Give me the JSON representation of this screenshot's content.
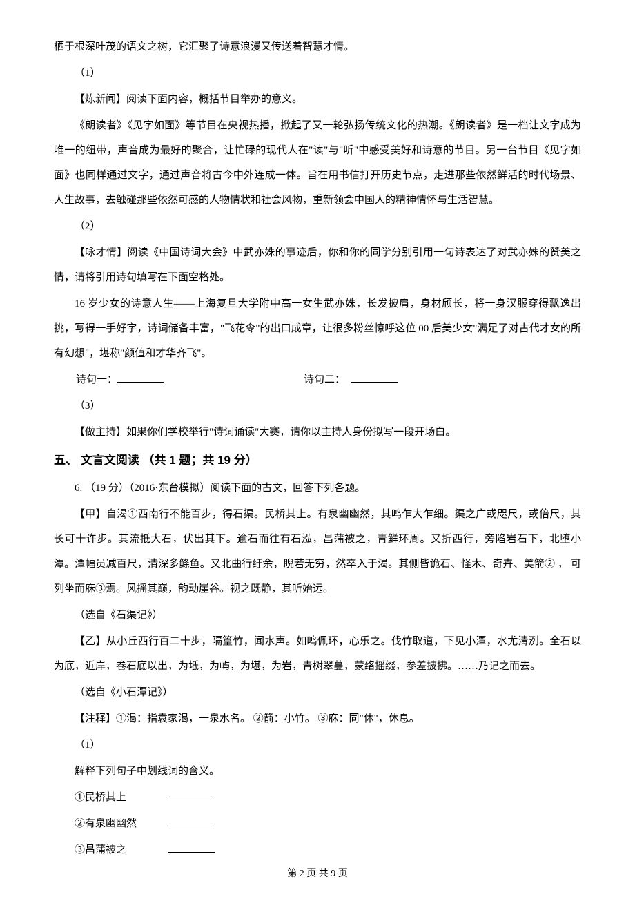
{
  "p1": "栖于根深叶茂的语文之树，它汇聚了诗意浪漫又传送着智慧才情。",
  "p2": "（1）",
  "p3": "【炼新闻】阅读下面内容，概括节目举办的意义。",
  "p4": "《朗读者》《见字如面》等节目在央视热播，掀起了又一轮弘扬传统文化的热潮。《朗读者》是一档让文字成为唯一的纽带，声音成为最好的聚合，让忙碌的现代人在\"读\"与\"听\"中感受美好和诗意的节目。另一台节目《见字如面》也同样通过文字，通过声音将古今中外连成一体。旨在用书信打开历史节点，走进那些依然鲜活的时代场景、人生故事，去触碰那些依然可感的人物情状和社会风物，重新领会中国人的精神情怀与生活智慧。",
  "p5": "（2）",
  "p6": "【咏才情】阅读《中国诗词大会》中武亦姝的事迹后，你和你的同学分别引用一句诗表达了对武亦姝的赞美之情，请将引用诗句填写在下面空格处。",
  "p7": "16 岁少女的诗意人生——上海复旦大学附中高一女生武亦姝，长发披肩，身材颀长，将一身汉服穿得飘逸出挑，写得一手好字，诗词储备丰富，\"飞花令\"的出口成章，让很多粉丝惊呼这位 00 后美少女\"满足了对古代才女的所有幻想\"，堪称\"颜值和才华齐飞\"。",
  "poem1_label": "诗句一：",
  "poem2_label": "诗句二：",
  "p8": "（3）",
  "p9": "【做主持】如果你们学校举行\"诗词诵读\"大赛，请你以主持人身份拟写一段开场白。",
  "section5": "五、 文言文阅读 （共 1 题；共 19 分）",
  "p10": "6. （19 分）（2016·东台模拟）阅读下面的古文，回答下列各题。",
  "p11": "【甲】自渴①西南行不能百步，得石渠。民桥其上。有泉幽幽然，其鸣乍大乍细。渠之广或咫尺，或倍尺，其长可十许步。其流抵大石，伏出其下。逾石而往有石泓，昌蒲被之，青鲜环周。又折西行，旁陷岩石下，北堕小潭。潭幅员减百尺，清深多鲦鱼。又北曲行纡余，睨若无穷，然卒入于渴。其侧皆诡石、怪木、奇卉、美箭② ， 可列坐而庥③焉。风摇其巅，韵动崖谷。视之既静，其听始远。",
  "p12": "（选自《石渠记》）",
  "p13": "【乙】从小丘西行百二十步，隔篁竹，闻水声。如鸣佩环，心乐之。伐竹取道，下见小潭，水尤清洌。全石以为底，近岸，卷石底以出，为坻，为屿，为堪，为岩，青树翠蔓，蒙络摇缀，参差披拂。……乃记之而去。",
  "p14": "（选自《小石潭记》）",
  "p15": "【注释】①渴：指袁家渴，一泉水名。 ②箭：小竹。 ③庥：同\"休\"，休息。",
  "p16": "（1）",
  "p17": "解释下列句子中划线词的含义。",
  "p18": "①民桥其上",
  "p19": "②有泉幽幽然",
  "p20": "③昌蒲被之",
  "footer": "第 2 页 共 9 页",
  "colors": {
    "background": "#ffffff",
    "text": "#000000"
  },
  "typography": {
    "body_fontsize": 15,
    "header_fontsize": 17,
    "footer_fontsize": 14,
    "line_height": 2.4
  }
}
